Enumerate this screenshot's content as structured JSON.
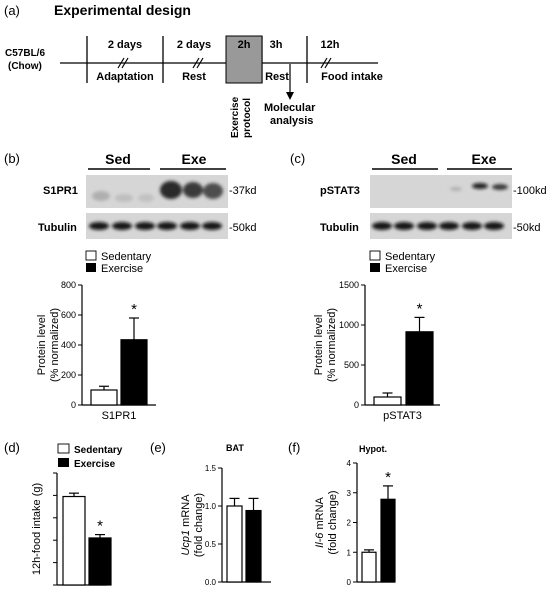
{
  "panel_a": {
    "letter": "(a)",
    "title": "Experimental design",
    "strain_line1": "C57BL/6",
    "strain_line2": "(Chow)",
    "phases": [
      {
        "duration": "2 days",
        "label": "Adaptation"
      },
      {
        "duration": "2 days",
        "label": "Rest"
      },
      {
        "duration": "2h",
        "label": "Exercise protocol"
      },
      {
        "duration": "3h",
        "label": "Rest"
      },
      {
        "duration": "12h",
        "label": "Food intake"
      }
    ],
    "exercise_line1": "Exercise",
    "exercise_line2": "protocol",
    "arrow_label_line1": "Molecular",
    "arrow_label_line2": "analysis",
    "box_color": "#999999"
  },
  "panel_b": {
    "letter": "(b)",
    "group_sed": "Sed",
    "group_exe": "Exe",
    "row1": "S1PR1",
    "row1_kd": "-37kd",
    "row2": "Tubulin",
    "row2_kd": "-50kd",
    "legend": [
      "Sedentary",
      "Exercise"
    ]
  },
  "panel_c": {
    "letter": "(c)",
    "group_sed": "Sed",
    "group_exe": "Exe",
    "row1": "pSTAT3",
    "row1_kd": "-100kd",
    "row2": "Tubulin",
    "row2_kd": "-50kd",
    "legend": [
      "Sedentary",
      "Exercise"
    ]
  },
  "panel_d": {
    "letter": "(d)",
    "legend": [
      "Sedentary",
      "Exercise"
    ]
  },
  "panel_e": {
    "letter": "(e)"
  },
  "panel_f": {
    "letter": "(f)"
  },
  "chart_data": [
    {
      "id": "b",
      "type": "bar",
      "categories": [
        "Sedentary",
        "Exercise"
      ],
      "values": [
        100,
        435
      ],
      "errors": [
        25,
        145
      ],
      "fills": [
        "#ffffff",
        "#000000"
      ],
      "ylim": [
        0,
        800
      ],
      "yticks": [
        "0",
        "200",
        "400",
        "600",
        "800"
      ],
      "ylabel_line1": "Protein level",
      "ylabel_line2": "(% normalized)",
      "xlabel": "S1PR1",
      "significance": "*"
    },
    {
      "id": "c",
      "type": "bar",
      "categories": [
        "Sedentary",
        "Exercise"
      ],
      "values": [
        100,
        915
      ],
      "errors": [
        50,
        180
      ],
      "fills": [
        "#ffffff",
        "#000000"
      ],
      "ylim": [
        0,
        1500
      ],
      "yticks": [
        "0",
        "500",
        "1000",
        "1500"
      ],
      "ylabel_line1": "Protein level",
      "ylabel_line2": "(% normalized)",
      "xlabel": "pSTAT3",
      "significance": "*"
    },
    {
      "id": "d",
      "type": "bar",
      "categories": [
        "Sedentary",
        "Exercise"
      ],
      "values": [
        3.95,
        2.1
      ],
      "errors": [
        0.15,
        0.15
      ],
      "fills": [
        "#ffffff",
        "#000000"
      ],
      "ylim": [
        0,
        5
      ],
      "yticks": [],
      "ylabel": "12h-food intake (g)",
      "significance": "*"
    },
    {
      "id": "e",
      "type": "bar",
      "title": "BAT",
      "categories": [
        "Sedentary",
        "Exercise"
      ],
      "values": [
        1.0,
        0.94
      ],
      "errors": [
        0.1,
        0.16
      ],
      "fills": [
        "#ffffff",
        "#000000"
      ],
      "ylim": [
        0,
        1.5
      ],
      "yticks": [
        "0.0",
        "0.5",
        "1.0",
        "1.5"
      ],
      "ylabel_gene": "Ucp1",
      "ylabel_rest": " mRNA",
      "ylabel_line2": "(fold change)",
      "significance": ""
    },
    {
      "id": "f",
      "type": "bar",
      "title": "Hypot.",
      "categories": [
        "Sedentary",
        "Exercise"
      ],
      "values": [
        1.0,
        2.78
      ],
      "errors": [
        0.08,
        0.45
      ],
      "fills": [
        "#ffffff",
        "#000000"
      ],
      "ylim": [
        0,
        4
      ],
      "yticks": [
        "0",
        "1",
        "2",
        "3",
        "4"
      ],
      "ylabel_gene": "Il-6",
      "ylabel_rest": " mRNA",
      "ylabel_line2": "(fold change)",
      "significance": "*"
    }
  ]
}
